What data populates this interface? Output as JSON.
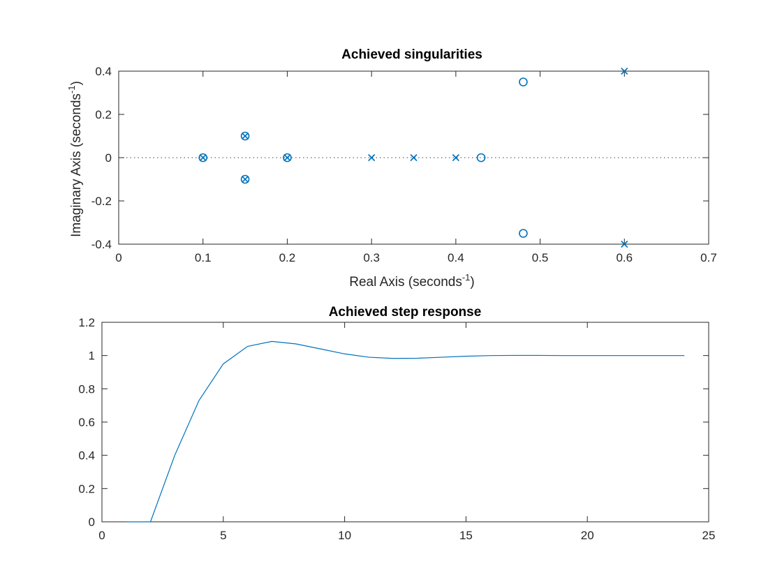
{
  "chart_data": [
    {
      "type": "scatter",
      "title": "Achieved singularities",
      "xlabel": "Real Axis (seconds",
      "xlabel_sup": "-1",
      "xlabel_tail": ")",
      "ylabel": "Imaginary Axis (seconds",
      "ylabel_sup": "-1",
      "ylabel_tail": ")",
      "xlim": [
        0,
        0.7
      ],
      "ylim": [
        -0.4,
        0.4
      ],
      "xticks": [
        "0",
        "0.1",
        "0.2",
        "0.3",
        "0.4",
        "0.5",
        "0.6",
        "0.7"
      ],
      "xtick_values": [
        0,
        0.1,
        0.2,
        0.3,
        0.4,
        0.5,
        0.6,
        0.7
      ],
      "yticks": [
        "-0.4",
        "-0.2",
        "0",
        "0.2",
        "0.4"
      ],
      "ytick_values": [
        -0.4,
        -0.2,
        0,
        0.2,
        0.4
      ],
      "zero_line": true,
      "color": "#0072bd",
      "series": [
        {
          "marker": "x",
          "points": [
            [
              0.1,
              0
            ],
            [
              0.15,
              0.1
            ],
            [
              0.15,
              -0.1
            ],
            [
              0.2,
              0
            ],
            [
              0.3,
              0
            ],
            [
              0.35,
              0
            ],
            [
              0.4,
              0
            ],
            [
              0.6,
              0.4
            ],
            [
              0.6,
              -0.4
            ]
          ]
        },
        {
          "marker": "o",
          "points": [
            [
              0.1,
              0
            ],
            [
              0.15,
              0.1
            ],
            [
              0.15,
              -0.1
            ],
            [
              0.2,
              0
            ],
            [
              0.43,
              0
            ],
            [
              0.48,
              0.35
            ],
            [
              0.48,
              -0.35
            ]
          ]
        }
      ]
    },
    {
      "type": "line",
      "title": "Achieved step response",
      "xlabel": "",
      "ylabel": "",
      "xlim": [
        0,
        25
      ],
      "ylim": [
        0,
        1.2
      ],
      "xticks": [
        "0",
        "5",
        "10",
        "15",
        "20",
        "25"
      ],
      "xtick_values": [
        0,
        5,
        10,
        15,
        20,
        25
      ],
      "yticks": [
        "0",
        "0.2",
        "0.4",
        "0.6",
        "0.8",
        "1",
        "1.2"
      ],
      "ytick_values": [
        0,
        0.2,
        0.4,
        0.6,
        0.8,
        1,
        1.2
      ],
      "color": "#0072bd",
      "series": [
        {
          "x": [
            1,
            2,
            3,
            4,
            5,
            6,
            7,
            8,
            9,
            10,
            11,
            12,
            13,
            14,
            15,
            16,
            17,
            18,
            19,
            20,
            21,
            22,
            23,
            24
          ],
          "values": [
            0,
            0,
            0.4,
            0.73,
            0.95,
            1.055,
            1.085,
            1.07,
            1.04,
            1.01,
            0.99,
            0.983,
            0.984,
            0.99,
            0.996,
            1.0,
            1.001,
            1.001,
            1.0,
            1.0,
            1.0,
            1.0,
            1.0,
            1.0
          ]
        }
      ]
    }
  ]
}
